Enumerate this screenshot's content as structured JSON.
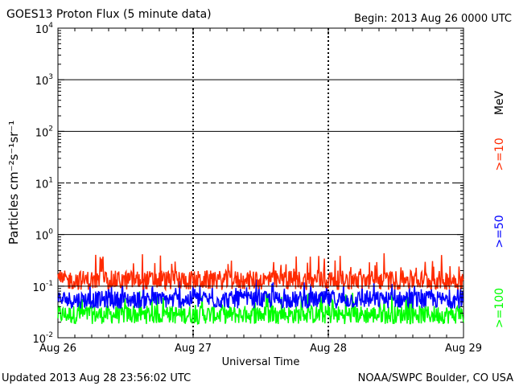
{
  "header": {
    "title": "GOES13 Proton Flux (5 minute data)",
    "begin": "Begin: 2013 Aug 26 0000 UTC"
  },
  "footer": {
    "updated": "Updated 2013 Aug 28 23:56:02 UTC",
    "credit": "NOAA/SWPC Boulder, CO USA"
  },
  "chart_data": {
    "type": "line",
    "title": "GOES13 Proton Flux (5 minute data)",
    "xlabel": "Universal Time",
    "ylabel": "Particles cm⁻²s⁻¹sr⁻¹",
    "yscale": "log",
    "ylim": [
      0.01,
      10000
    ],
    "xlim": [
      "Aug 26",
      "Aug 29"
    ],
    "x_ticks": [
      "Aug 26",
      "Aug 27",
      "Aug 28",
      "Aug 29"
    ],
    "y_ticks": [
      {
        "base": "10",
        "exp": "-2"
      },
      {
        "base": "10",
        "exp": "-1"
      },
      {
        "base": "10",
        "exp": "0"
      },
      {
        "base": "10",
        "exp": "1"
      },
      {
        "base": "10",
        "exp": "2"
      },
      {
        "base": "10",
        "exp": "3"
      },
      {
        "base": "10",
        "exp": "4"
      }
    ],
    "unit_label": "MeV",
    "threshold_dashed": 10,
    "grid_solid": [
      1,
      100,
      1000
    ],
    "reference_line": 0.1,
    "series": [
      {
        "name": ">=10",
        "color": "#ff2a00",
        "typical": 0.13,
        "min": 0.07,
        "max": 0.45
      },
      {
        "name": ">=50",
        "color": "#0000ff",
        "typical": 0.06,
        "min": 0.03,
        "max": 0.14
      },
      {
        "name": ">=100",
        "color": "#00ff00",
        "typical": 0.03,
        "min": 0.015,
        "max": 0.08
      }
    ]
  }
}
